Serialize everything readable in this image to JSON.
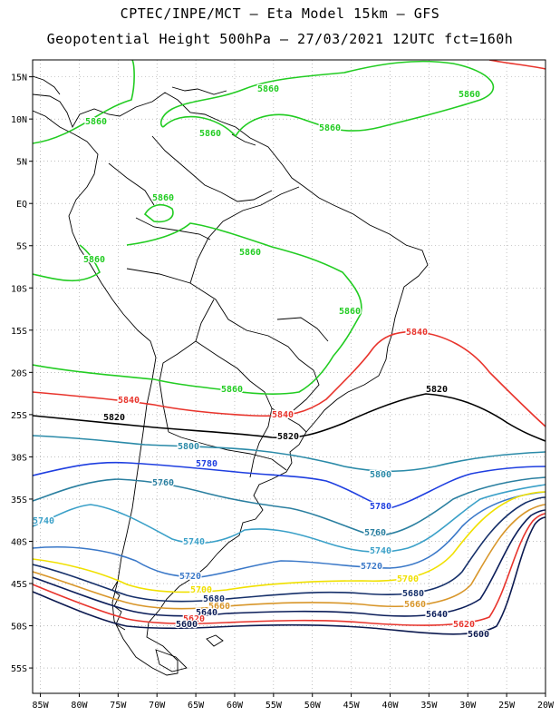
{
  "header": {
    "title_line1": "CPTEC/INPE/MCT –  Eta Model 15km – GFS",
    "title_line2": "Geopotential Height 500hPa – 27/03/2021 12UTC fct=160h"
  },
  "axes": {
    "lon_ticks": [
      "85W",
      "80W",
      "75W",
      "70W",
      "65W",
      "60W",
      "55W",
      "50W",
      "45W",
      "40W",
      "35W",
      "30W",
      "25W",
      "20W"
    ],
    "lat_ticks": [
      "15N",
      "10N",
      "5N",
      "EQ",
      "5S",
      "10S",
      "15S",
      "20S",
      "25S",
      "30S",
      "35S",
      "40S",
      "45S",
      "50S",
      "55S"
    ],
    "lon_range": [
      -86,
      -20
    ],
    "lat_range": [
      17,
      -58
    ]
  },
  "contours": [
    {
      "level": 5860,
      "label": "5860",
      "color": "#22cc22"
    },
    {
      "level": 5840,
      "label": "5840",
      "color": "#e8342c"
    },
    {
      "level": 5820,
      "label": "5820",
      "color": "#000000"
    },
    {
      "level": 5800,
      "label": "5800",
      "color": "#2a8aa8"
    },
    {
      "level": 5780,
      "label": "5780",
      "color": "#1e3ee0"
    },
    {
      "level": 5760,
      "label": "5760",
      "color": "#2a7fa0"
    },
    {
      "level": 5740,
      "label": "5740",
      "color": "#3aa0c8"
    },
    {
      "level": 5720,
      "label": "5720",
      "color": "#3a78c8"
    },
    {
      "level": 5700,
      "label": "5700",
      "color": "#f0e000"
    },
    {
      "level": 5680,
      "label": "5680",
      "color": "#16306a"
    },
    {
      "level": 5660,
      "label": "5660",
      "color": "#d8962a"
    },
    {
      "level": 5640,
      "label": "5640",
      "color": "#0c1e5a"
    },
    {
      "level": 5620,
      "label": "5620",
      "color": "#e8342c"
    },
    {
      "level": 5600,
      "label": "5600",
      "color": "#0c1a50"
    }
  ]
}
